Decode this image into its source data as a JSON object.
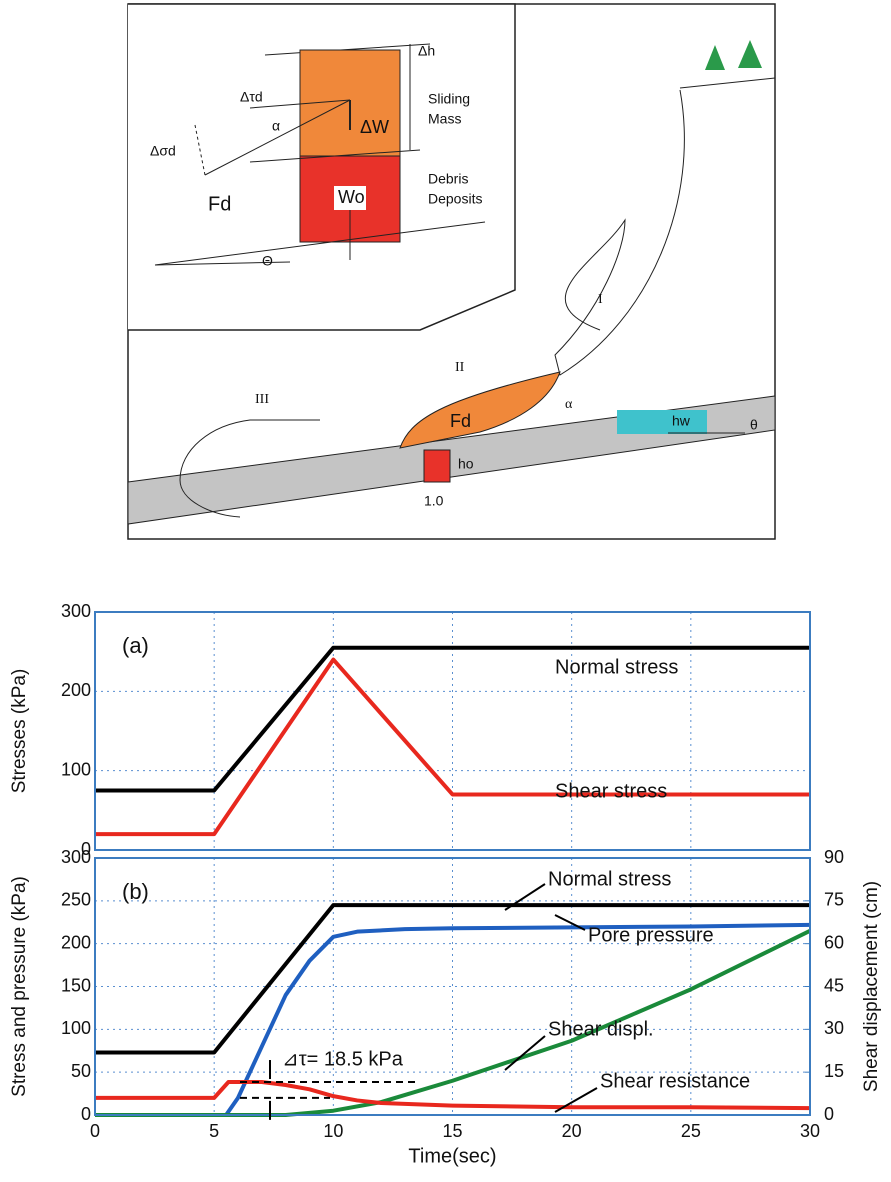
{
  "diagram": {
    "labels": [
      "Δh",
      "Sliding",
      "Mass",
      "ΔW",
      "Δτd",
      "α",
      "Δσd",
      "Fd",
      "Debris",
      "Deposits",
      "Wo",
      "Θ",
      "I",
      "II",
      "III",
      "Fd",
      "α",
      "ho",
      "1.0",
      "hw",
      "θ"
    ]
  },
  "chart_data": [
    {
      "type": "line",
      "panel": "(a)",
      "ylabel": "Stresses (kPa)",
      "xlim": [
        0,
        30
      ],
      "xticks": [
        0,
        5,
        10,
        15,
        20,
        25,
        30
      ],
      "show_xtick_labels": false,
      "ylim": [
        0,
        300
      ],
      "yticks": [
        0,
        100,
        200,
        300
      ],
      "grid": true,
      "series": [
        {
          "name": "Normal stress",
          "color": "#000000",
          "x": [
            0,
            5,
            10,
            30
          ],
          "values": [
            75,
            75,
            255,
            255
          ]
        },
        {
          "name": "Shear stress",
          "color": "#e8281e",
          "x": [
            0,
            5,
            10,
            15,
            30
          ],
          "values": [
            20,
            20,
            240,
            70,
            70
          ]
        }
      ]
    },
    {
      "type": "line",
      "panel": "(b)",
      "xlabel": "Time(sec)",
      "ylabel": "Stress and pressure (kPa)",
      "y2label": "Shear displacement (cm)",
      "xlim": [
        0,
        30
      ],
      "xticks": [
        0,
        5,
        10,
        15,
        20,
        25,
        30
      ],
      "ylim": [
        0,
        300
      ],
      "yticks": [
        0,
        50,
        100,
        150,
        200,
        250,
        300
      ],
      "y2lim": [
        0,
        90
      ],
      "y2ticks": [
        0,
        15,
        30,
        45,
        60,
        75,
        90
      ],
      "grid": true,
      "annotation": "⊿τ= 18.5 kPa",
      "series": [
        {
          "name": "Normal stress",
          "color": "#000000",
          "x": [
            0,
            5,
            10,
            30
          ],
          "values": [
            73,
            73,
            245,
            245
          ]
        },
        {
          "name": "Pore pressure",
          "color": "#1f5fc0",
          "x": [
            0,
            5.5,
            6,
            7,
            8,
            9,
            10,
            11,
            13,
            15,
            20,
            25,
            30
          ],
          "values": [
            0,
            0,
            20,
            80,
            140,
            180,
            208,
            214,
            217,
            218,
            219,
            220,
            222
          ]
        },
        {
          "name": "Shear displ.",
          "color": "#1a8a3a",
          "axis": "y2",
          "x": [
            0,
            8,
            10,
            12,
            15,
            20,
            25,
            30
          ],
          "values": [
            0,
            0,
            1.5,
            4.5,
            12,
            26,
            44,
            64.5
          ]
        },
        {
          "name": "Shear resistance",
          "color": "#e8281e",
          "x": [
            0,
            5,
            5.6,
            7,
            8,
            9,
            10,
            11,
            12,
            15,
            20,
            25,
            30
          ],
          "values": [
            20,
            20,
            38.5,
            38.5,
            35,
            30,
            22,
            17,
            14,
            11,
            9,
            9,
            8
          ]
        }
      ]
    }
  ]
}
